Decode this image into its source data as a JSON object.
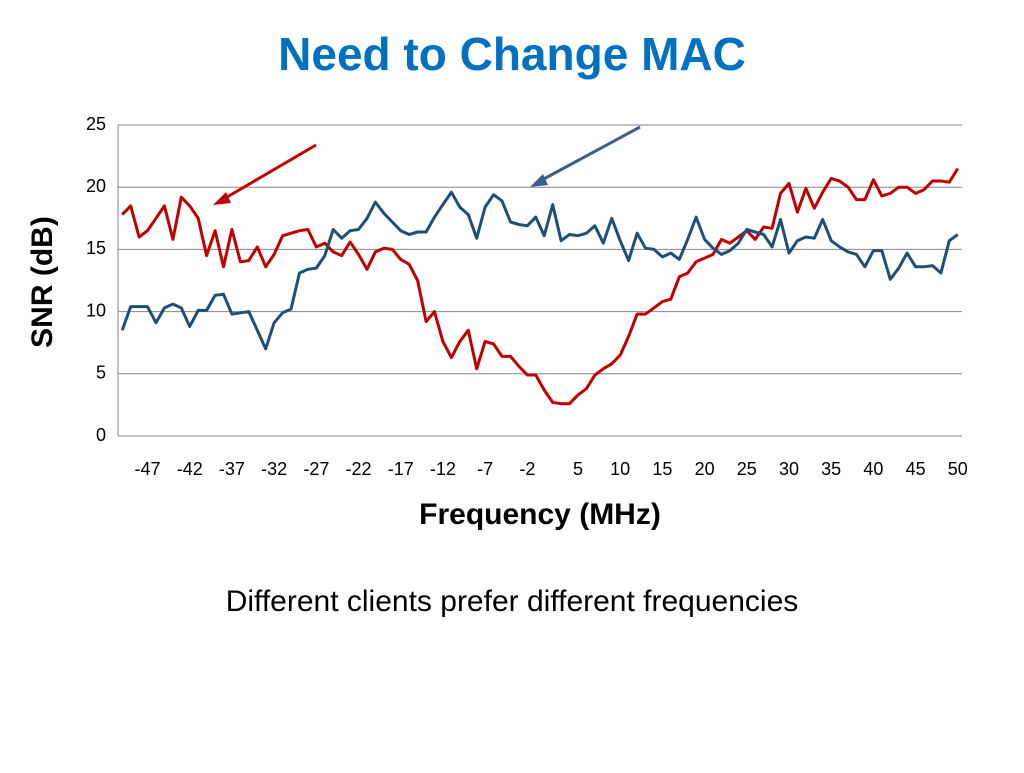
{
  "chart_data": {
    "type": "line",
    "title": "Need to Change MAC",
    "x_label": "Frequency (MHz)",
    "y_label": "SNR (dB)",
    "caption": "Different clients prefer different frequencies",
    "categories": [
      null,
      null,
      null,
      -47,
      null,
      null,
      null,
      null,
      -42,
      null,
      null,
      null,
      null,
      -37,
      null,
      null,
      null,
      null,
      -32,
      null,
      null,
      null,
      null,
      -27,
      null,
      null,
      null,
      null,
      -22,
      null,
      null,
      null,
      null,
      -17,
      null,
      null,
      null,
      null,
      -12,
      null,
      null,
      null,
      null,
      -7,
      null,
      null,
      null,
      null,
      -2,
      null,
      null,
      null,
      null,
      null,
      5,
      null,
      null,
      null,
      null,
      10,
      null,
      null,
      null,
      null,
      15,
      null,
      null,
      null,
      null,
      20,
      null,
      null,
      null,
      null,
      25,
      null,
      null,
      null,
      null,
      30,
      null,
      null,
      null,
      null,
      35,
      null,
      null,
      null,
      null,
      40,
      null,
      null,
      null,
      null,
      45,
      null,
      null,
      null,
      null,
      50
    ],
    "series": [
      {
        "color": "#c00000",
        "values": [
          17.8,
          18.5,
          16,
          16.5,
          17.5,
          18.5,
          15.8,
          19.2,
          18.5,
          17.5,
          14.5,
          16.5,
          13.6,
          16.6,
          14,
          14.1,
          15.2,
          13.6,
          14.6,
          16.1,
          16.3,
          16.5,
          16.6,
          15.2,
          15.5,
          14.8,
          14.5,
          15.6,
          14.6,
          13.4,
          14.8,
          15.1,
          15,
          14.2,
          13.8,
          12.5,
          9.2,
          10,
          7.6,
          6.3,
          7.6,
          8.5,
          5.4,
          7.6,
          7.4,
          6.4,
          6.4,
          5.6,
          4.9,
          4.9,
          3.7,
          2.7,
          2.6,
          2.6,
          3.3,
          3.8,
          4.9,
          5.4,
          5.8,
          6.5,
          8,
          9.8,
          9.8,
          10.3,
          10.8,
          11,
          12.8,
          13.1,
          14,
          14.3,
          14.6,
          15.8,
          15.5,
          16,
          16.5,
          15.8,
          16.8,
          16.7,
          19.5,
          20.3,
          18,
          19.9,
          18.3,
          19.6,
          20.7,
          20.5,
          20,
          19,
          19,
          20.6,
          19.3,
          19.5,
          20,
          20,
          19.5,
          19.8,
          20.5,
          20.5,
          20.4,
          21.5
        ]
      },
      {
        "color": "#1f4e79",
        "values": [
          8.5,
          10.4,
          10.4,
          10.4,
          9.1,
          10.3,
          10.6,
          10.3,
          8.8,
          10.1,
          10.1,
          11.3,
          11.4,
          9.8,
          9.9,
          10,
          8.5,
          7,
          9.1,
          9.9,
          10.2,
          13.1,
          13.4,
          13.5,
          14.5,
          16.6,
          15.9,
          16.5,
          16.6,
          17.5,
          18.8,
          17.9,
          17.2,
          16.5,
          16.2,
          16.4,
          16.4,
          17.6,
          18.6,
          19.6,
          18.4,
          17.8,
          15.9,
          18.4,
          19.4,
          18.9,
          17.2,
          17,
          16.9,
          17.6,
          16.1,
          18.6,
          15.7,
          16.2,
          16.1,
          16.3,
          16.9,
          15.5,
          17.5,
          15.7,
          14.1,
          16.3,
          15.1,
          15,
          14.4,
          14.7,
          14.2,
          15.8,
          17.6,
          15.8,
          15.1,
          14.6,
          14.9,
          15.5,
          16.6,
          16.4,
          16.2,
          15.2,
          17.4,
          14.7,
          15.7,
          16,
          15.9,
          17.4,
          15.7,
          15.2,
          14.8,
          14.6,
          13.6,
          14.9,
          14.9,
          12.6,
          13.5,
          14.7,
          13.6,
          13.6,
          13.7,
          13.1,
          15.7,
          16.2
        ]
      }
    ],
    "ylim": [
      0,
      25
    ],
    "yticks": [
      0,
      5,
      10,
      15,
      20,
      25
    ],
    "grid": true
  }
}
